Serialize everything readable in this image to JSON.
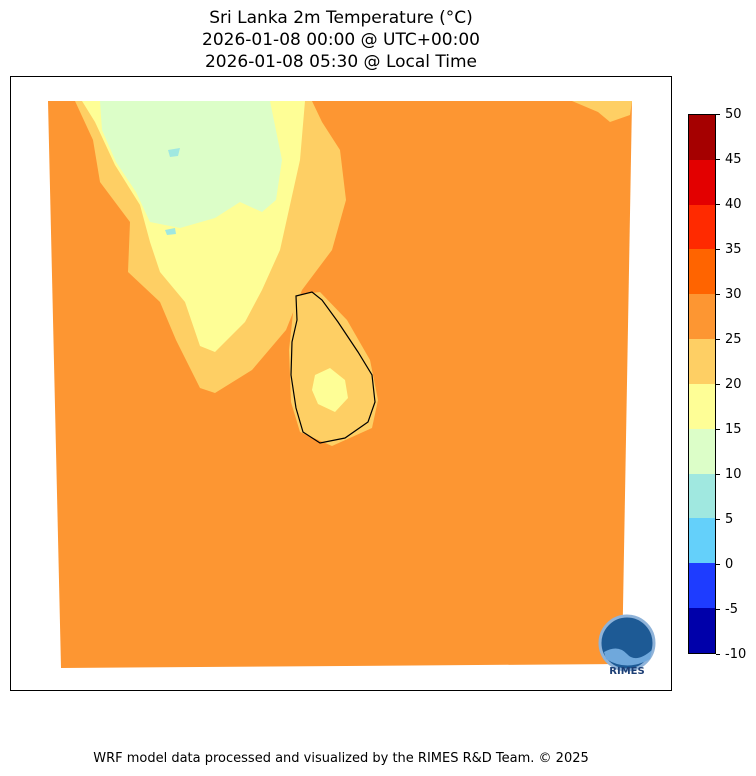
{
  "title": {
    "line1": "Sri Lanka 2m Temperature (°C)",
    "line2": "2026-01-08 00:00 @ UTC+00:00",
    "line3": "2026-01-08 05:30 @ Local Time"
  },
  "colorbar": {
    "ticks": [
      "50",
      "45",
      "40",
      "35",
      "30",
      "25",
      "20",
      "15",
      "10",
      "5",
      "0",
      "-5",
      "-10"
    ],
    "colors_top_to_bottom": [
      "#a50000",
      "#e30000",
      "#ff2a00",
      "#ff6400",
      "#fd9632",
      "#fecf64",
      "#fefe96",
      "#dcfec8",
      "#a0e8e0",
      "#64d0fa",
      "#1e3cff",
      "#0000aa"
    ]
  },
  "logo": {
    "text": "RIMES"
  },
  "footer": "WRF model data processed and visualized by the RIMES R&D Team. © 2025"
}
